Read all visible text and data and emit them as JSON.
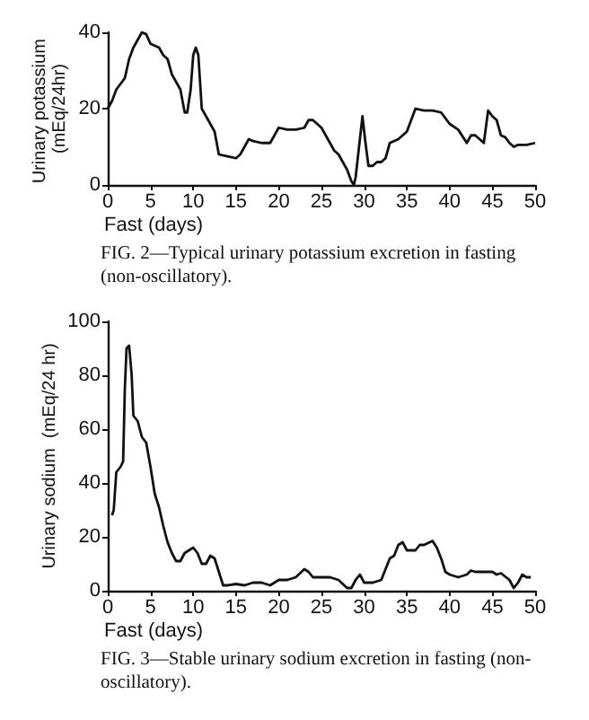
{
  "chart_data": [
    {
      "type": "line",
      "xlabel": "Fast (days)",
      "ylabel": "Urinary potassium (mEq/24hr)",
      "annotations": [
        "FIG. 2—Typical urinary potassium excretion in fasting (non-oscillatory)."
      ],
      "xlim": [
        0,
        50
      ],
      "xticks": [
        0,
        5,
        10,
        15,
        20,
        25,
        30,
        35,
        40,
        45,
        50
      ],
      "ylim": [
        0,
        40
      ],
      "yticks": [
        0,
        20,
        40
      ],
      "grid": false,
      "marker": "none",
      "line_style": "solid",
      "series": [
        {
          "color": "#111111",
          "x": [
            0,
            0.5,
            1,
            2,
            2.5,
            3,
            3.5,
            4,
            4.5,
            5,
            6,
            6.5,
            7,
            7.5,
            8,
            8.5,
            9,
            9.3,
            9.7,
            10,
            10.3,
            10.6,
            11,
            11.5,
            12,
            12.5,
            13,
            14,
            15,
            15.5,
            16,
            16.5,
            17,
            18,
            19,
            19.5,
            20,
            21,
            22,
            23,
            23.5,
            24,
            25,
            25.5,
            26,
            26.5,
            27,
            27.5,
            28,
            28.5,
            28.8,
            29,
            29.5,
            29.8,
            30.1,
            30.5,
            31,
            31.5,
            32,
            32.5,
            33,
            34,
            34.5,
            35,
            35.5,
            36,
            37,
            38,
            39,
            40,
            41,
            42,
            42.5,
            43,
            43.5,
            44,
            44.5,
            45,
            45.5,
            46,
            46.5,
            47,
            47.5,
            48,
            49,
            50
          ],
          "values": [
            20,
            22,
            25,
            28,
            33,
            36,
            38,
            40,
            39.5,
            37,
            36,
            34,
            33,
            29,
            27,
            25,
            19,
            19,
            25,
            34,
            36,
            34,
            20,
            18,
            16,
            14,
            8,
            7.5,
            7,
            8,
            10,
            12,
            11.5,
            11,
            11,
            13,
            15,
            14.5,
            14.5,
            15,
            17,
            17,
            15,
            13,
            11,
            9,
            8,
            6,
            4,
            1,
            0,
            2,
            12,
            18,
            12,
            5,
            5,
            6,
            6,
            7,
            11,
            12,
            13,
            14,
            17,
            20,
            19.5,
            19.5,
            19,
            16,
            14.5,
            11,
            13,
            13,
            12,
            11,
            19.5,
            18,
            17,
            13,
            12.5,
            11,
            10,
            10.5,
            10.5,
            11
          ]
        }
      ]
    },
    {
      "type": "line",
      "xlabel": "Fast (days)",
      "ylabel": "Urinary sodium  (mEq/24 hr)",
      "annotations": [
        "FIG. 3—Stable urinary sodium excretion in fasting (non-oscillatory)."
      ],
      "xlim": [
        0,
        50
      ],
      "xticks": [
        0,
        5,
        10,
        15,
        20,
        25,
        30,
        35,
        40,
        45,
        50
      ],
      "ylim": [
        0,
        100
      ],
      "yticks": [
        0,
        20,
        40,
        60,
        80,
        100
      ],
      "grid": false,
      "marker": "none",
      "line_style": "solid",
      "series": [
        {
          "color": "#111111",
          "x": [
            0.5,
            0.7,
            1,
            1.5,
            1.8,
            2,
            2.2,
            2.5,
            2.8,
            3,
            3.5,
            4,
            4.5,
            5,
            5.5,
            6,
            6.5,
            7,
            7.5,
            8,
            8.5,
            9,
            9.5,
            10,
            10.5,
            11,
            11.5,
            12,
            12.5,
            13,
            13.5,
            14,
            15,
            16,
            17,
            18,
            19,
            20,
            21,
            22,
            23,
            23.5,
            24,
            25,
            26,
            27,
            28,
            28.5,
            29,
            29.5,
            30,
            31,
            32,
            33,
            33.5,
            34,
            34.5,
            35,
            36,
            36.5,
            37,
            38,
            38.5,
            39,
            39.5,
            40,
            41,
            42,
            42.5,
            43,
            44,
            45,
            45.5,
            46,
            47,
            47.5,
            48,
            48.5,
            49,
            49.5
          ],
          "values": [
            28,
            30,
            44,
            46,
            48,
            75,
            90,
            91,
            80,
            65,
            63,
            57,
            55,
            46,
            36,
            31,
            24,
            18,
            14,
            11,
            11,
            14,
            15,
            16,
            14,
            10,
            10,
            13,
            12,
            7,
            2,
            2,
            2.5,
            2,
            3,
            3,
            2,
            4,
            4,
            5,
            8,
            7,
            5,
            5,
            5,
            4,
            1,
            1,
            4,
            6,
            3,
            3,
            4,
            12,
            13,
            17,
            18,
            15,
            15,
            17,
            17,
            18.5,
            16,
            12,
            7,
            6,
            5,
            6,
            7.5,
            7,
            7,
            7,
            6,
            6.5,
            4,
            1,
            3,
            6,
            5,
            5
          ]
        }
      ]
    }
  ]
}
